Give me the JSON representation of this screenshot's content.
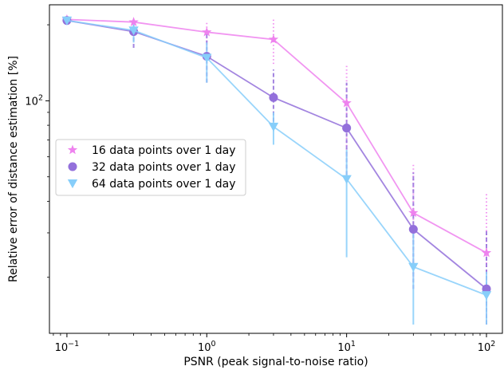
{
  "chart_data": {
    "type": "line",
    "xlabel": "PSNR (peak signal-to-noise ratio)",
    "ylabel": "Relative error of distance estimation [%]",
    "x_scale": "log",
    "y_scale": "log",
    "xlim": [
      0.075,
      130
    ],
    "ylim": [
      12,
      240
    ],
    "x_ticks": [
      {
        "value": 0.1,
        "base": "10",
        "exp": "−1"
      },
      {
        "value": 1,
        "base": "10",
        "exp": "0"
      },
      {
        "value": 10,
        "base": "10",
        "exp": "1"
      },
      {
        "value": 100,
        "base": "10",
        "exp": "2"
      }
    ],
    "y_ticks": [
      {
        "value": 100,
        "base": "10",
        "exp": "2"
      }
    ],
    "grid": false,
    "legend_position": "center-left",
    "x": [
      0.1,
      0.3,
      1,
      3,
      10,
      30,
      100
    ],
    "series": [
      {
        "name": "16 data points over 1 day",
        "marker": "star",
        "color": "#ee82ee",
        "linestyle": "dotted",
        "values": [
          210,
          205,
          187,
          175,
          98,
          36,
          25
        ],
        "err_low": [
          210,
          185,
          160,
          140,
          60,
          20,
          13
        ],
        "err_high": [
          210,
          210,
          205,
          210,
          140,
          56,
          43
        ]
      },
      {
        "name": "32 data points over 1 day",
        "marker": "circle",
        "color": "#9370db",
        "linestyle": "dashed",
        "values": [
          208,
          188,
          150,
          103,
          78,
          31,
          18
        ],
        "err_low": [
          208,
          162,
          118,
          78,
          48,
          18,
          13
        ],
        "err_high": [
          208,
          208,
          185,
          133,
          118,
          52,
          31
        ]
      },
      {
        "name": "64 data points over 1 day",
        "marker": "triangle_down",
        "color": "#87cefa",
        "linestyle": "solid",
        "values": [
          208,
          190,
          148,
          79,
          49,
          22,
          17
        ],
        "err_low": [
          208,
          170,
          118,
          67,
          24,
          13,
          13
        ],
        "err_high": [
          208,
          208,
          170,
          90,
          64,
          31,
          21
        ]
      }
    ]
  }
}
